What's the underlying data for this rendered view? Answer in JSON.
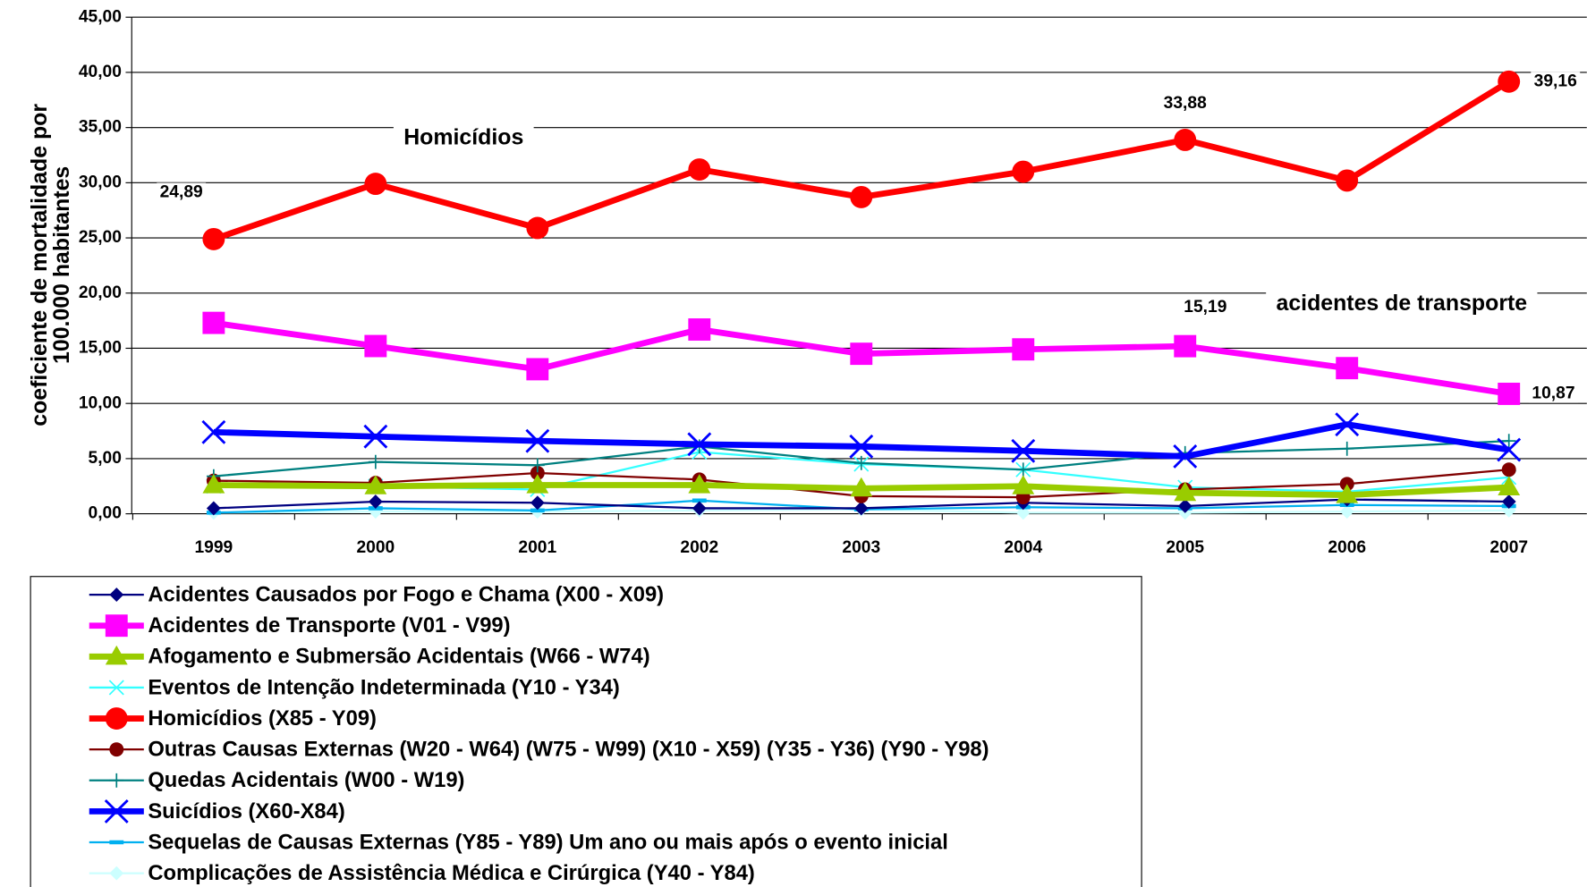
{
  "chart_data": {
    "type": "line",
    "y_label": [
      "coeficiente de mortalidade por",
      "100.000 habitantes"
    ],
    "categories": [
      "1999",
      "2000",
      "2001",
      "2002",
      "2003",
      "2004",
      "2005",
      "2006",
      "2007"
    ],
    "ylim": [
      0,
      45
    ],
    "yticks": [
      {
        "value": 0,
        "label": "0,00"
      },
      {
        "value": 5,
        "label": "5,00"
      },
      {
        "value": 10,
        "label": "10,00"
      },
      {
        "value": 15,
        "label": "15,00"
      },
      {
        "value": 20,
        "label": "20,00"
      },
      {
        "value": 25,
        "label": "25,00"
      },
      {
        "value": 30,
        "label": "30,00"
      },
      {
        "value": 35,
        "label": "35,00"
      },
      {
        "value": 40,
        "label": "40,00"
      },
      {
        "value": 45,
        "label": "45,00"
      }
    ],
    "grid": true,
    "legend": "bottom",
    "annotations": [
      "Homicídios",
      "acidentes de transporte"
    ],
    "series": [
      {
        "name": "Acidentes Causados por Fogo e Chama (X00 - X09)",
        "color": "#000080",
        "marker": "diamond",
        "values": [
          0.5,
          1.1,
          1.0,
          0.5,
          0.5,
          1.0,
          0.7,
          1.3,
          1.1
        ]
      },
      {
        "name": "Acidentes de Transporte (V01 - V99)",
        "color": "#ff00ff",
        "marker": "square",
        "values": [
          17.3,
          15.2,
          13.1,
          16.7,
          14.5,
          14.9,
          15.19,
          13.2,
          10.87
        ],
        "value_labels": [
          null,
          null,
          null,
          null,
          null,
          null,
          "15,19",
          null,
          "10,87"
        ]
      },
      {
        "name": "Afogamento e Submersão Acidentais (W66 - W74)",
        "color": "#99cc00",
        "marker": "triangle",
        "values": [
          2.6,
          2.5,
          2.6,
          2.6,
          2.3,
          2.5,
          1.9,
          1.7,
          2.4
        ]
      },
      {
        "name": "Eventos de Intenção Indeterminada (Y10 - Y34)",
        "color": "#33ffff",
        "marker": "x",
        "values": [
          2.5,
          2.5,
          2.2,
          5.6,
          4.5,
          4.0,
          2.4,
          2.0,
          3.3
        ]
      },
      {
        "name": "Homicídios (X85 - Y09)",
        "color": "#ff0000",
        "marker": "circle",
        "values": [
          24.89,
          29.9,
          25.9,
          31.2,
          28.7,
          31.0,
          33.88,
          30.2,
          39.16
        ],
        "value_labels": [
          "24,89",
          null,
          null,
          null,
          null,
          null,
          "33,88",
          null,
          "39,16"
        ]
      },
      {
        "name": "Outras Causas Externas (W20 - W64) (W75 - W99) (X10 - X59) (Y35 - Y36) (Y90 - Y98)",
        "color": "#800000",
        "marker": "circle",
        "values": [
          3.0,
          2.8,
          3.7,
          3.1,
          1.6,
          1.5,
          2.2,
          2.7,
          4.0
        ]
      },
      {
        "name": "Quedas Acidentais (W00 - W19)",
        "color": "#008080",
        "marker": "plus",
        "values": [
          3.4,
          4.7,
          4.4,
          6.1,
          4.6,
          4.0,
          5.5,
          5.9,
          6.6
        ]
      },
      {
        "name": "Suicídios (X60-X84)",
        "color": "#0000ff",
        "marker": "x",
        "values": [
          7.4,
          7.0,
          6.6,
          6.3,
          6.1,
          5.7,
          5.2,
          8.1,
          5.8
        ]
      },
      {
        "name": "Sequelas de Causas Externas (Y85 - Y89) Um ano ou mais após o evento inicial",
        "color": "#00b0f0",
        "marker": "dash",
        "values": [
          0.1,
          0.5,
          0.3,
          1.2,
          0.4,
          0.6,
          0.5,
          0.8,
          0.7
        ]
      },
      {
        "name": "Complicações de Assistência Médica e Cirúrgica (Y40 - Y84)",
        "color": "#ccffff",
        "marker": "diamond",
        "values": [
          0.1,
          0.2,
          0.2,
          0.3,
          0.4,
          0.1,
          0.1,
          0.2,
          0.3
        ]
      }
    ]
  }
}
